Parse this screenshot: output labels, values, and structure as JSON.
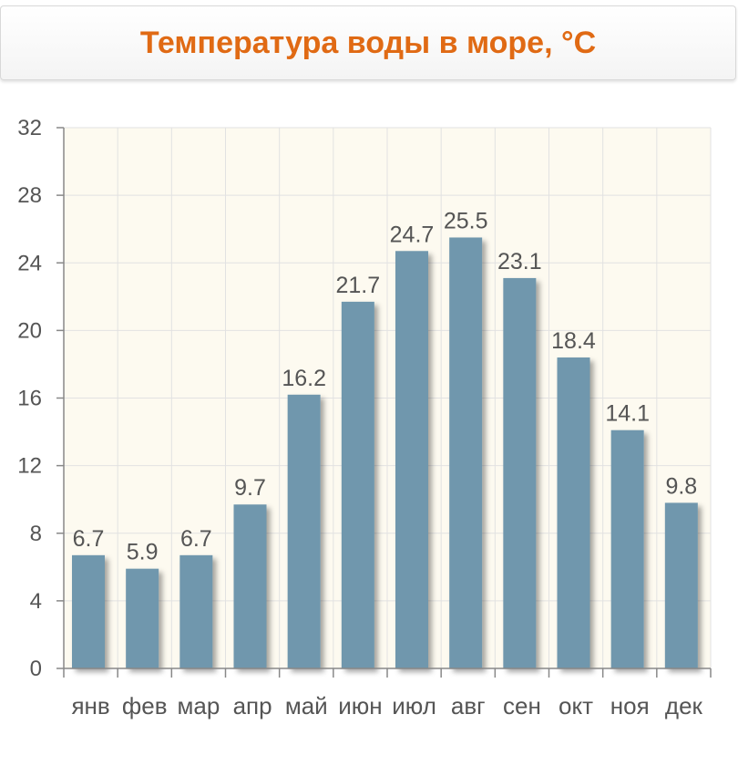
{
  "title": "Температура воды в море, °C",
  "colors": {
    "bar": "#6f97ad",
    "plot_bg": "#fdfaf0",
    "title": "#e06a14",
    "grid": "#e2e2e2",
    "text": "#555555"
  },
  "chart_data": {
    "type": "bar",
    "title": "Температура воды в море, °C",
    "xlabel": "",
    "ylabel": "",
    "categories": [
      "янв",
      "фев",
      "мар",
      "апр",
      "май",
      "июн",
      "июл",
      "авг",
      "сен",
      "окт",
      "ноя",
      "дек"
    ],
    "values": [
      6.7,
      5.9,
      6.7,
      9.7,
      16.2,
      21.7,
      24.7,
      25.5,
      23.1,
      18.4,
      14.1,
      9.8
    ],
    "value_labels": [
      "6.7",
      "5.9",
      "6.7",
      "9.7",
      "16.2",
      "21.7",
      "24.7",
      "25.5",
      "23.1",
      "18.4",
      "14.1",
      "9.8"
    ],
    "ylim": [
      0,
      32
    ],
    "yticks": [
      "0",
      "4",
      "8",
      "12",
      "16",
      "20",
      "24",
      "28",
      "32"
    ],
    "grid": true,
    "legend": "none"
  }
}
